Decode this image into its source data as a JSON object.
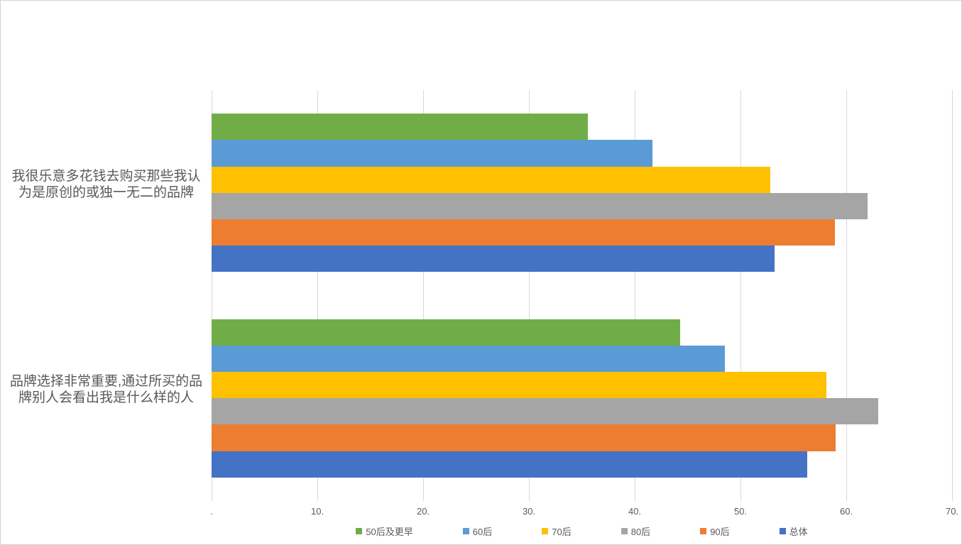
{
  "chart_data": {
    "type": "bar",
    "orientation": "horizontal",
    "title": "",
    "categories": [
      "我很乐意多花钱去购买那些我认为是原创的或独一无二的品牌",
      "品牌选择非常重要,通过所买的品牌别人会看出我是什么样的人"
    ],
    "series": [
      {
        "key": "50s-and-earlier",
        "name": "50后及更早",
        "color": "#70AD47",
        "values": [
          35.6,
          44.3
        ]
      },
      {
        "key": "60s",
        "name": "60后",
        "color": "#5B9BD5",
        "values": [
          41.7,
          48.5
        ]
      },
      {
        "key": "70s",
        "name": "70后",
        "color": "#FFC000",
        "values": [
          52.8,
          58.1
        ]
      },
      {
        "key": "80s",
        "name": "80后",
        "color": "#A5A5A5",
        "values": [
          62.0,
          63.0
        ]
      },
      {
        "key": "90s",
        "name": "90后",
        "color": "#ED7D31",
        "values": [
          58.9,
          59.0
        ]
      },
      {
        "key": "overall",
        "name": "总体",
        "color": "#4472C4",
        "values": [
          53.2,
          56.3
        ]
      }
    ],
    "x_axis": {
      "min": 0,
      "max": 70,
      "step": 10,
      "tick_labels": [
        ".",
        "10.",
        "20.",
        "30.",
        "40.",
        "50.",
        "60.",
        "70."
      ]
    },
    "legend_position": "bottom",
    "grid": true,
    "gridline_color": "#D9D9D9",
    "text_color": "#595959"
  }
}
